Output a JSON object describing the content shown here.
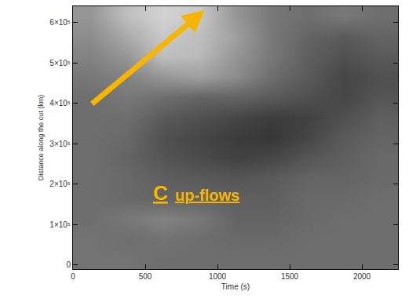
{
  "chart_data": {
    "type": "heatmap",
    "x_label": "Time (s)",
    "y_label": "Distance along the cut (km)",
    "annotations": [
      "C",
      "up-flows"
    ],
    "xlim": [
      0,
      2250
    ],
    "xticks": [
      0,
      500,
      1000,
      1500,
      2000
    ],
    "ylim": [
      -10000,
      640000
    ],
    "yticks": [
      0,
      {
        "value": 100000,
        "label": "1×10⁵"
      },
      {
        "value": 200000,
        "label": "2×10⁵"
      },
      {
        "value": 300000,
        "label": "3×10⁵"
      },
      {
        "value": 400000,
        "label": "4×10⁵"
      },
      {
        "value": 500000,
        "label": "5×10⁵"
      },
      {
        "value": 600000,
        "label": "6×10⁵"
      }
    ],
    "grid": false,
    "x": [
      125,
      375,
      625,
      875,
      1125,
      1375,
      1625,
      1875,
      2125
    ],
    "y": [
      15000,
      65000,
      115000,
      165000,
      215000,
      265000,
      315000,
      365000,
      415000,
      465000,
      515000,
      565000,
      615000
    ],
    "cells": [
      [
        115,
        115,
        110,
        110,
        110,
        110,
        110,
        110,
        110
      ],
      [
        115,
        110,
        115,
        110,
        105,
        105,
        110,
        110,
        110
      ],
      [
        110,
        120,
        130,
        120,
        100,
        100,
        105,
        110,
        110
      ],
      [
        110,
        105,
        100,
        100,
        95,
        95,
        105,
        105,
        110
      ],
      [
        110,
        105,
        95,
        90,
        85,
        90,
        100,
        100,
        105
      ],
      [
        110,
        100,
        85,
        75,
        65,
        70,
        85,
        95,
        105
      ],
      [
        110,
        105,
        80,
        70,
        60,
        55,
        70,
        90,
        100
      ],
      [
        110,
        110,
        90,
        80,
        70,
        60,
        65,
        80,
        95
      ],
      [
        110,
        120,
        110,
        100,
        100,
        90,
        80,
        70,
        85
      ],
      [
        120,
        130,
        150,
        160,
        140,
        110,
        90,
        70,
        80
      ],
      [
        130,
        150,
        190,
        185,
        150,
        120,
        95,
        80,
        90
      ],
      [
        140,
        170,
        200,
        190,
        160,
        120,
        100,
        90,
        100
      ],
      [
        150,
        190,
        210,
        200,
        150,
        120,
        110,
        120,
        110
      ]
    ],
    "color_range": [
      0,
      255
    ]
  }
}
